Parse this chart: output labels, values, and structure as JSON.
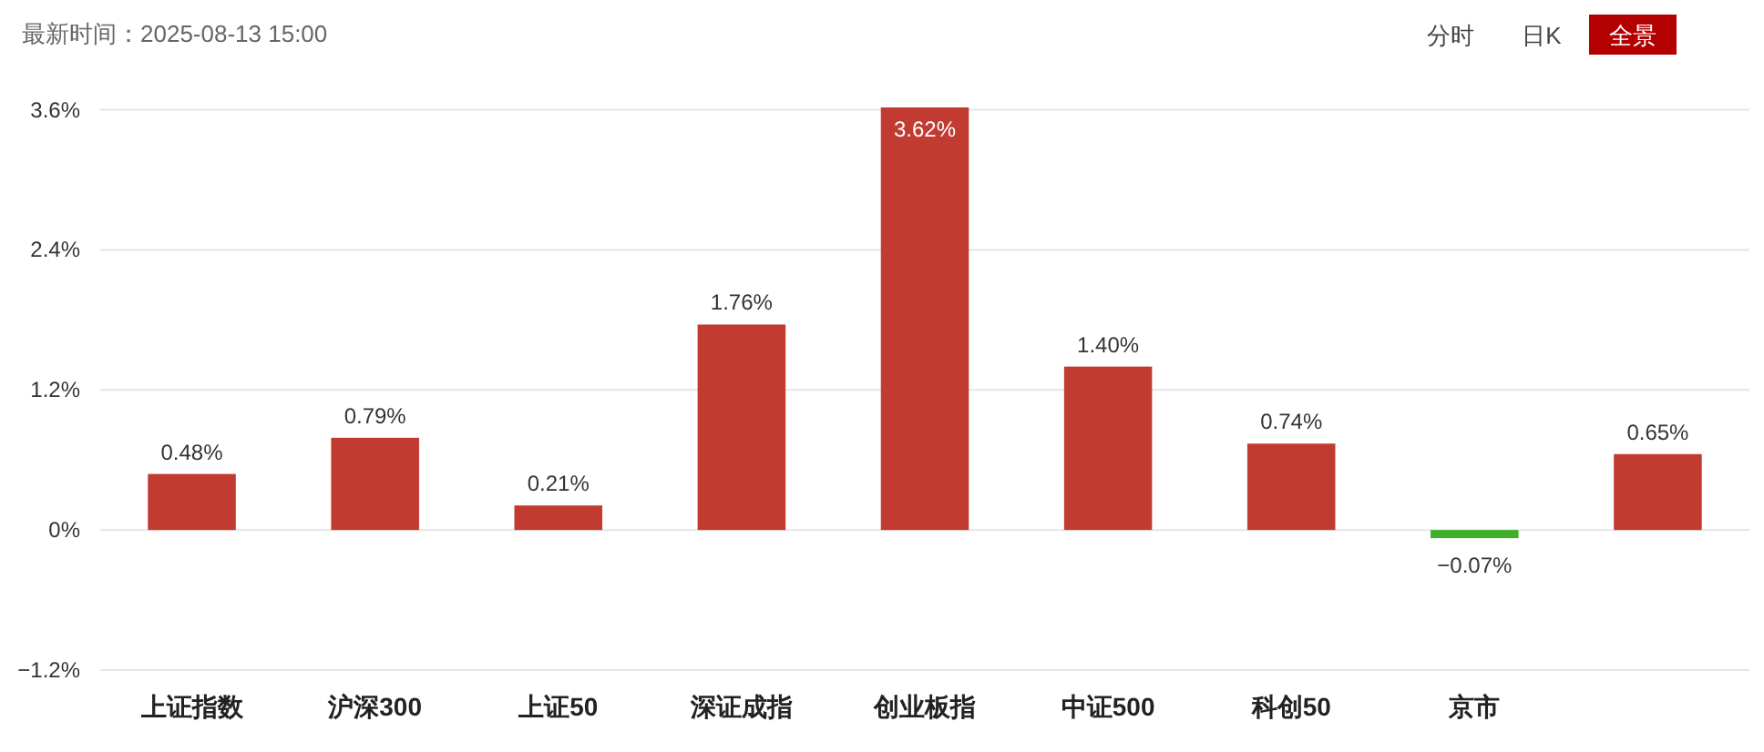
{
  "chart_data": {
    "type": "bar",
    "categories": [
      "上证指数",
      "沪深300",
      "上证50",
      "深证成指",
      "创业板指",
      "中证500",
      "科创50",
      "京市",
      null
    ],
    "values": [
      0.48,
      0.79,
      0.21,
      1.76,
      3.62,
      1.4,
      0.74,
      -0.07,
      0.65
    ],
    "colors": [
      "#c23b31",
      "#c23b31",
      "#c23b31",
      "#c23b31",
      "#c23b31",
      "#c23b31",
      "#c23b31",
      "#3fae2a",
      "#c23b31"
    ],
    "value_labels": [
      "0.48%",
      "0.79%",
      "0.21%",
      "1.76%",
      "3.62%",
      "1.40%",
      "0.74%",
      "−0.07%",
      "0.65%"
    ],
    "ylim": [
      -1.2,
      3.62
    ],
    "yticks": [
      {
        "value": -1.2,
        "label": "−1.2%"
      },
      {
        "value": 0,
        "label": "0%"
      },
      {
        "value": 1.2,
        "label": "1.2%"
      },
      {
        "value": 2.4,
        "label": "2.4%"
      },
      {
        "value": 3.6,
        "label": "3.6%"
      }
    ],
    "grid": "y",
    "annotations": [
      "最新时间：2025-08-13 15:00",
      "分时",
      "日K",
      "全景"
    ]
  }
}
